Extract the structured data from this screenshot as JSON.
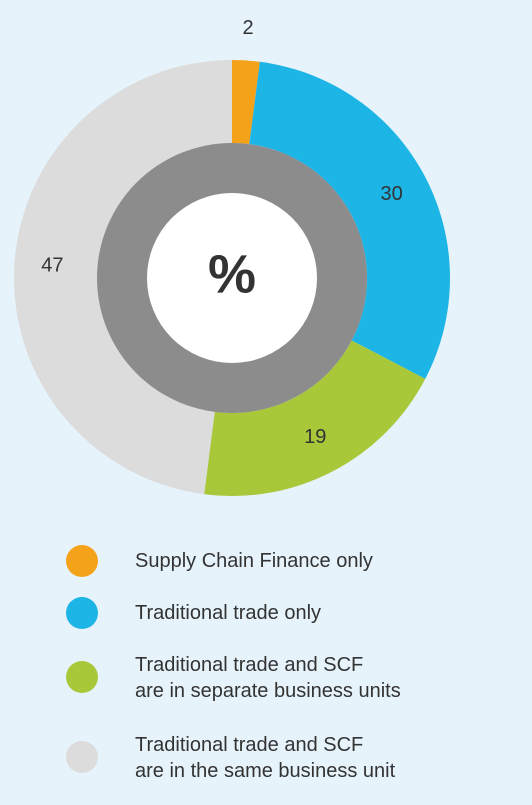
{
  "chart_data": {
    "type": "donut",
    "center_label": "%",
    "categories": [
      "Supply Chain Finance only",
      "Traditional trade only",
      "Traditional trade and SCF\nare in separate business units",
      "Traditional trade and SCF\nare in the same business unit"
    ],
    "values": [
      2,
      30,
      19,
      47
    ],
    "colors": [
      "#f5a21b",
      "#1db4e6",
      "#a8c83a",
      "#dcdcdc"
    ]
  }
}
